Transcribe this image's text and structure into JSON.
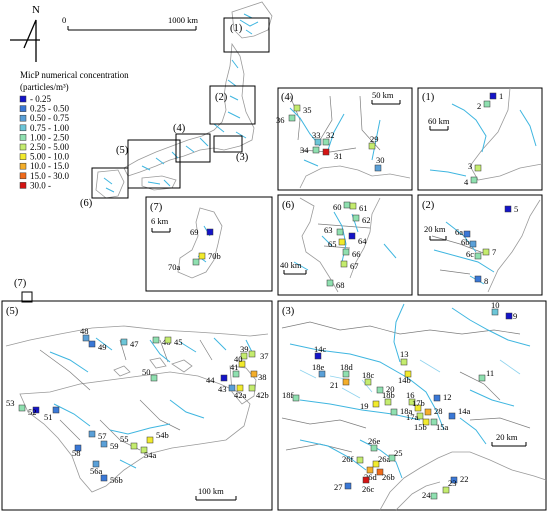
{
  "north_arrow": {
    "label": "N"
  },
  "main_scale": {
    "zero": "0",
    "label": "1000 km"
  },
  "legend": {
    "title_line1": "MicP numerical concentration",
    "title_line2": "(particles/m³)",
    "classes": [
      {
        "label": "- 0.25",
        "color": "#1414c8"
      },
      {
        "label": "0.25 - 0.50",
        "color": "#3a78d6"
      },
      {
        "label": "0.50 - 0.75",
        "color": "#5aa0d8"
      },
      {
        "label": "0.75 - 1.00",
        "color": "#6cc6d8"
      },
      {
        "label": "1.00 - 2.50",
        "color": "#8fe0b0"
      },
      {
        "label": "2.50 - 5.00",
        "color": "#c4ec6e"
      },
      {
        "label": "5.00 - 10.0",
        "color": "#f1ea2c"
      },
      {
        "label": "10.0 - 15.0",
        "color": "#f4ae2a"
      },
      {
        "label": "15.0 - 30.0",
        "color": "#f06a1a"
      },
      {
        "label": "30.0 -",
        "color": "#d41414"
      }
    ]
  },
  "overview_boxes": [
    "(1)",
    "(2)",
    "(3)",
    "(4)",
    "(5)",
    "(6)",
    "(7)"
  ],
  "panels": {
    "p1": {
      "label": "(1)",
      "scale": "60 km",
      "points": [
        {
          "id": "1",
          "c": 0
        },
        {
          "id": "2",
          "c": 4
        },
        {
          "id": "3",
          "c": 5
        },
        {
          "id": "4",
          "c": 4
        }
      ]
    },
    "p2": {
      "label": "(2)",
      "scale": "20 km",
      "points": [
        {
          "id": "5",
          "c": 0
        },
        {
          "id": "6a",
          "c": 1
        },
        {
          "id": "6b",
          "c": 2
        },
        {
          "id": "6c",
          "c": 4
        },
        {
          "id": "7",
          "c": 5
        },
        {
          "id": "8",
          "c": 1
        }
      ]
    },
    "p4": {
      "label": "(4)",
      "scale": "50 km",
      "points": [
        {
          "id": "35",
          "c": 5
        },
        {
          "id": "36",
          "c": 4
        },
        {
          "id": "33",
          "c": 3
        },
        {
          "id": "32",
          "c": 4
        },
        {
          "id": "34",
          "c": 4
        },
        {
          "id": "31",
          "c": 9
        },
        {
          "id": "29",
          "c": 5
        },
        {
          "id": "30",
          "c": 2
        }
      ]
    },
    "p6": {
      "label": "(6)",
      "scale": "40 km",
      "points": [
        {
          "id": "60",
          "c": 4
        },
        {
          "id": "61",
          "c": 5
        },
        {
          "id": "62",
          "c": 4
        },
        {
          "id": "63",
          "c": 4
        },
        {
          "id": "64",
          "c": 0
        },
        {
          "id": "65",
          "c": 6
        },
        {
          "id": "66",
          "c": 4
        },
        {
          "id": "67",
          "c": 5
        },
        {
          "id": "68",
          "c": 4
        }
      ]
    },
    "p7": {
      "label": "(7)",
      "scale": "6 km",
      "points": [
        {
          "id": "69",
          "c": 0
        },
        {
          "id": "70a",
          "c": 4
        },
        {
          "id": "70b",
          "c": 6
        }
      ]
    },
    "p5": {
      "label": "(5)",
      "scale": "100 km",
      "points": [
        {
          "id": "48",
          "c": 2
        },
        {
          "id": "49",
          "c": 1
        },
        {
          "id": "47",
          "c": 3
        },
        {
          "id": "46",
          "c": 4
        },
        {
          "id": "45",
          "c": 5
        },
        {
          "id": "50",
          "c": 4
        },
        {
          "id": "39",
          "c": 5
        },
        {
          "id": "40",
          "c": 6
        },
        {
          "id": "37",
          "c": 5
        },
        {
          "id": "38",
          "c": 7
        },
        {
          "id": "44",
          "c": 0
        },
        {
          "id": "41",
          "c": 4
        },
        {
          "id": "43",
          "c": 2
        },
        {
          "id": "42a",
          "c": 6
        },
        {
          "id": "42b",
          "c": 5
        },
        {
          "id": "53",
          "c": 4
        },
        {
          "id": "52",
          "c": 0
        },
        {
          "id": "51",
          "c": 1
        },
        {
          "id": "57",
          "c": 2
        },
        {
          "id": "58",
          "c": 1
        },
        {
          "id": "59",
          "c": 2
        },
        {
          "id": "55",
          "c": 5
        },
        {
          "id": "54b",
          "c": 6
        },
        {
          "id": "54a",
          "c": 5
        },
        {
          "id": "56a",
          "c": 2
        },
        {
          "id": "56b",
          "c": 1
        }
      ]
    },
    "p3": {
      "label": "(3)",
      "scale": "20 km",
      "points": [
        {
          "id": "10",
          "c": 3
        },
        {
          "id": "9",
          "c": 0
        },
        {
          "id": "11",
          "c": 4
        },
        {
          "id": "14c",
          "c": 0
        },
        {
          "id": "13",
          "c": 5
        },
        {
          "id": "14b",
          "c": 6
        },
        {
          "id": "18e",
          "c": 2
        },
        {
          "id": "18d",
          "c": 4
        },
        {
          "id": "18c",
          "c": 5
        },
        {
          "id": "21",
          "c": 7
        },
        {
          "id": "18f",
          "c": 4
        },
        {
          "id": "20",
          "c": 4
        },
        {
          "id": "12",
          "c": 1
        },
        {
          "id": "19",
          "c": 6
        },
        {
          "id": "18b",
          "c": 5
        },
        {
          "id": "18a",
          "c": 4
        },
        {
          "id": "16",
          "c": 5
        },
        {
          "id": "17b",
          "c": 6
        },
        {
          "id": "17a",
          "c": 5
        },
        {
          "id": "28",
          "c": 7
        },
        {
          "id": "15b",
          "c": 6
        },
        {
          "id": "15a",
          "c": 4
        },
        {
          "id": "14a",
          "c": 1
        },
        {
          "id": "26e",
          "c": 4
        },
        {
          "id": "26f",
          "c": 5
        },
        {
          "id": "26a",
          "c": 6
        },
        {
          "id": "25",
          "c": 4
        },
        {
          "id": "26d",
          "c": 7
        },
        {
          "id": "26b",
          "c": 8
        },
        {
          "id": "26c",
          "c": 9
        },
        {
          "id": "27",
          "c": 1
        },
        {
          "id": "22",
          "c": 1
        },
        {
          "id": "24",
          "c": 4
        },
        {
          "id": "23",
          "c": 5
        }
      ]
    }
  }
}
